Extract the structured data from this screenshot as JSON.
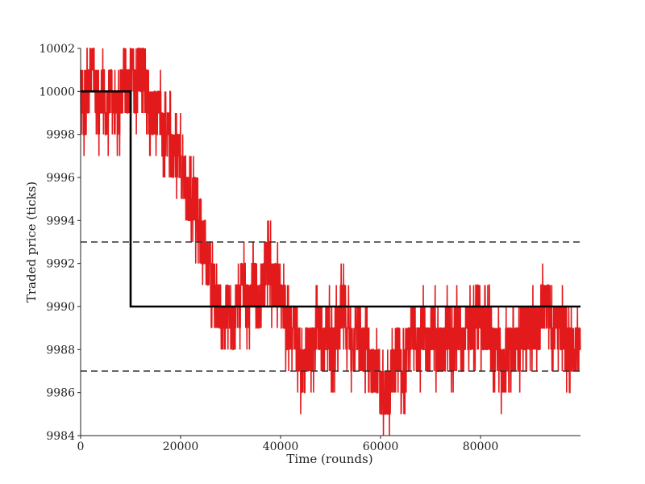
{
  "chart_data": {
    "type": "line",
    "title": "",
    "xlabel": "Time (rounds)",
    "ylabel": "Traded price (ticks)",
    "xlim": [
      0,
      100000
    ],
    "ylim": [
      9984,
      10002
    ],
    "xticks": [
      0,
      20000,
      40000,
      60000,
      80000
    ],
    "yticks": [
      9984,
      9986,
      9988,
      9990,
      9992,
      9994,
      9996,
      9998,
      10000,
      10002
    ],
    "grid": false,
    "colors": {
      "traded": "#e31a1c",
      "fundamental": "#000000",
      "band": "#333333"
    },
    "series": [
      {
        "style": "jagged-red",
        "points": [
          [
            0,
            10000
          ],
          [
            700,
            9999
          ],
          [
            1500,
            10000
          ],
          [
            2200,
            10001
          ],
          [
            3200,
            10000
          ],
          [
            3800,
            9999
          ],
          [
            4500,
            10000
          ],
          [
            5200,
            9999
          ],
          [
            6000,
            10000
          ],
          [
            6800,
            9999
          ],
          [
            7600,
            9999
          ],
          [
            8200,
            10000
          ],
          [
            8800,
            10001
          ],
          [
            9400,
            10000
          ],
          [
            10200,
            10001
          ],
          [
            11000,
            10000
          ],
          [
            11800,
            10001
          ],
          [
            12400,
            10001
          ],
          [
            13200,
            10000
          ],
          [
            14000,
            9999
          ],
          [
            15500,
            9999
          ],
          [
            16500,
            9998
          ],
          [
            17500,
            9998
          ],
          [
            18500,
            9997
          ],
          [
            19500,
            9997
          ],
          [
            20500,
            9996
          ],
          [
            21500,
            9995
          ],
          [
            22500,
            9995
          ],
          [
            23500,
            9994
          ],
          [
            24500,
            9993
          ],
          [
            25500,
            9992
          ],
          [
            26500,
            9991
          ],
          [
            27500,
            9990
          ],
          [
            28500,
            9989
          ],
          [
            29500,
            9990
          ],
          [
            30500,
            9989
          ],
          [
            31500,
            9990
          ],
          [
            32500,
            9991
          ],
          [
            33500,
            9990
          ],
          [
            34500,
            9991
          ],
          [
            35500,
            9990
          ],
          [
            36500,
            9991
          ],
          [
            37500,
            9992
          ],
          [
            38500,
            9991
          ],
          [
            39500,
            9991
          ],
          [
            40500,
            9990
          ],
          [
            41500,
            9989
          ],
          [
            42500,
            9989
          ],
          [
            43500,
            9988
          ],
          [
            44500,
            9987
          ],
          [
            45500,
            9988
          ],
          [
            46500,
            9988
          ],
          [
            47500,
            9989
          ],
          [
            48500,
            9988
          ],
          [
            49500,
            9989
          ],
          [
            50500,
            9988
          ],
          [
            51500,
            9989
          ],
          [
            52500,
            9990
          ],
          [
            53500,
            9989
          ],
          [
            54500,
            9988
          ],
          [
            55500,
            9989
          ],
          [
            56500,
            9988
          ],
          [
            57500,
            9988
          ],
          [
            58500,
            9987
          ],
          [
            59500,
            9987
          ],
          [
            60500,
            9986
          ],
          [
            61500,
            9986
          ],
          [
            62500,
            9987
          ],
          [
            63500,
            9988
          ],
          [
            64500,
            9987
          ],
          [
            65500,
            9988
          ],
          [
            66500,
            9989
          ],
          [
            67500,
            9988
          ],
          [
            68500,
            9989
          ],
          [
            69500,
            9988
          ],
          [
            70500,
            9989
          ],
          [
            71500,
            9988
          ],
          [
            72500,
            9988
          ],
          [
            73500,
            9989
          ],
          [
            74500,
            9988
          ],
          [
            75500,
            9989
          ],
          [
            76500,
            9988
          ],
          [
            77500,
            9989
          ],
          [
            78500,
            9989
          ],
          [
            79500,
            9990
          ],
          [
            80500,
            9989
          ],
          [
            81500,
            9989
          ],
          [
            82500,
            9988
          ],
          [
            83500,
            9988
          ],
          [
            84500,
            9987
          ],
          [
            85500,
            9988
          ],
          [
            86500,
            9988
          ],
          [
            87500,
            9988
          ],
          [
            88500,
            9989
          ],
          [
            89500,
            9989
          ],
          [
            90500,
            9989
          ],
          [
            91500,
            9989
          ],
          [
            92500,
            9990
          ],
          [
            93500,
            9990
          ],
          [
            94500,
            9989
          ],
          [
            95500,
            9989
          ],
          [
            96500,
            9989
          ],
          [
            97500,
            9988
          ],
          [
            98500,
            9988
          ],
          [
            100000,
            9988
          ]
        ]
      },
      {
        "style": "solid-black",
        "points": [
          [
            0,
            10000
          ],
          [
            10000,
            10000
          ],
          [
            10000,
            9990
          ],
          [
            100000,
            9990
          ]
        ]
      },
      {
        "style": "dashed-black",
        "points": [
          [
            0,
            9993
          ],
          [
            100000,
            9993
          ]
        ]
      },
      {
        "style": "dashed-black",
        "points": [
          [
            0,
            9987
          ],
          [
            100000,
            9987
          ]
        ]
      }
    ]
  }
}
